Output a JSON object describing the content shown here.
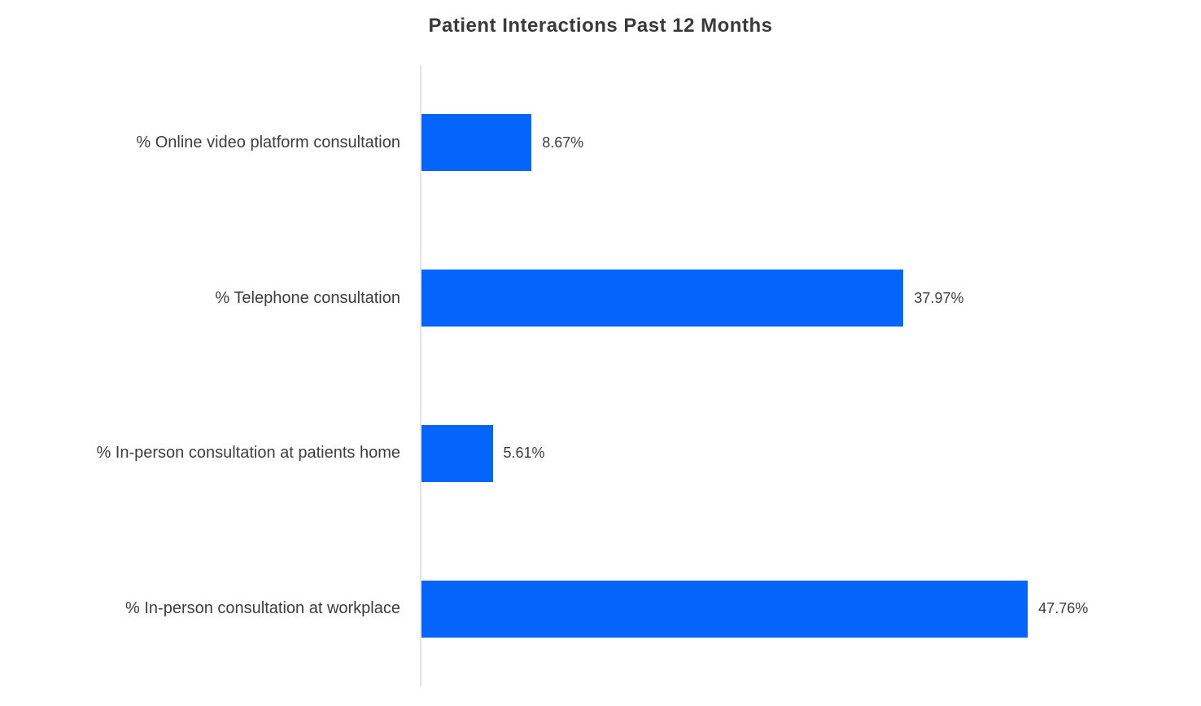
{
  "chart_data": {
    "type": "bar",
    "orientation": "horizontal",
    "title": "Patient Interactions Past 12 Months",
    "categories": [
      "% Online video platform consultation",
      "% Telephone consultation",
      "% In-person consultation at patients home",
      "% In-person consultation at workplace"
    ],
    "values": [
      8.67,
      37.97,
      5.61,
      47.76
    ],
    "value_labels": [
      "8.67%",
      "37.97%",
      "5.61%",
      "47.76%"
    ],
    "xlim": [
      0,
      61.4
    ],
    "xlabel": "",
    "ylabel": "",
    "grid": false,
    "legend": false,
    "bar_color": "#0564fa",
    "axis_line_color": "#e4e4e4",
    "title_color": "#3a3a3a",
    "text_color": "#3d3d3d",
    "background_color": "#ffffff"
  }
}
